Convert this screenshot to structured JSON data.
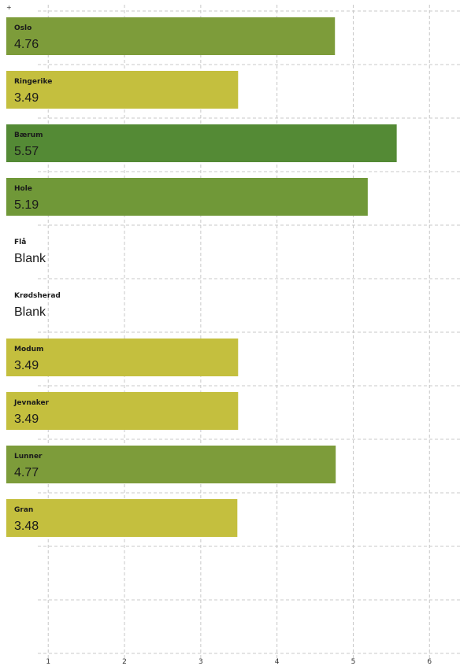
{
  "corner_mark": "+",
  "chart_data": {
    "type": "bar",
    "orientation": "horizontal",
    "categories": [
      "Oslo",
      "Ringerike",
      "Bærum",
      "Hole",
      "Flå",
      "Krødsherad",
      "Modum",
      "Jevnaker",
      "Lunner",
      "Gran"
    ],
    "values": [
      4.76,
      3.49,
      5.57,
      5.19,
      null,
      null,
      3.49,
      3.49,
      4.77,
      3.48
    ],
    "value_labels": [
      "4.76",
      "3.49",
      "5.57",
      "5.19",
      "Blank",
      "Blank",
      "3.49",
      "3.49",
      "4.77",
      "3.48"
    ],
    "bar_colors": [
      "#7d9c3a",
      "#c4bf3e",
      "#548a35",
      "#709838",
      null,
      null,
      "#c4bf3e",
      "#c4bf3e",
      "#7d9c3a",
      "#c4bf3e"
    ],
    "x_ticks": [
      "1",
      "2",
      "3",
      "4",
      "5",
      "6"
    ],
    "xlim": [
      0.45,
      6.4
    ],
    "grid": true,
    "title": "",
    "xlabel": "",
    "ylabel": ""
  }
}
